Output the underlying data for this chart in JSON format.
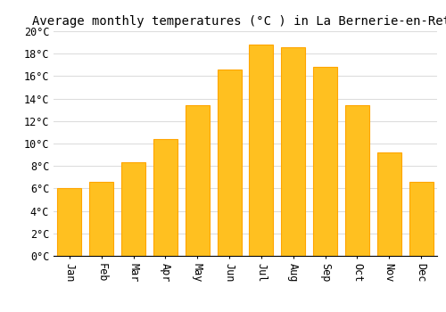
{
  "title": "Average monthly temperatures (°C ) in La Bernerie-en-Retz",
  "months": [
    "Jan",
    "Feb",
    "Mar",
    "Apr",
    "May",
    "Jun",
    "Jul",
    "Aug",
    "Sep",
    "Oct",
    "Nov",
    "Dec"
  ],
  "temperatures": [
    6.0,
    6.6,
    8.3,
    10.4,
    13.4,
    16.6,
    18.8,
    18.6,
    16.8,
    13.4,
    9.2,
    6.6
  ],
  "bar_color": "#FFC020",
  "bar_edge_color": "#FFA500",
  "background_color": "#FFFFFF",
  "grid_color": "#DDDDDD",
  "ylim": [
    0,
    20
  ],
  "yticks": [
    0,
    2,
    4,
    6,
    8,
    10,
    12,
    14,
    16,
    18,
    20
  ],
  "title_fontsize": 10,
  "tick_fontsize": 8.5,
  "title_font": "monospace",
  "tick_font": "monospace"
}
